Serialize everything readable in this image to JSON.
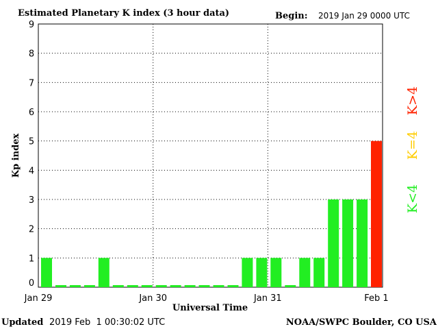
{
  "header": {
    "title": "Estimated Planetary K index (3 hour data)",
    "begin_label": "Begin:",
    "begin_value": "2019 Jan 29 0000 UTC"
  },
  "footer": {
    "updated_label": "Updated",
    "updated_value": "2019 Feb  1 00:30:02 UTC",
    "source": "NOAA/SWPC Boulder, CO USA"
  },
  "legend": {
    "below": "K<4",
    "equal": "K=4",
    "above": "K>4"
  },
  "colors": {
    "below": "#22ee22",
    "equal": "#ffcc00",
    "above": "#ff2200"
  },
  "chart_data": {
    "type": "bar",
    "title": "Estimated Planetary K index (3 hour data)",
    "xlabel": "Universal Time",
    "ylabel": "Kp index",
    "ylim": [
      0,
      9
    ],
    "y_ticks": [
      "0",
      "1",
      "2",
      "3",
      "4",
      "5",
      "6",
      "7",
      "8",
      "9"
    ],
    "x_tick_labels": [
      "Jan 29",
      "Jan 30",
      "Jan 31",
      "Feb 1"
    ],
    "interval_hours": 3,
    "grid": true,
    "values": [
      1,
      0,
      0,
      0,
      1,
      0,
      0,
      0,
      0,
      0,
      0,
      0,
      0,
      0,
      1,
      1,
      1,
      0,
      1,
      1,
      3,
      3,
      3,
      5
    ]
  }
}
